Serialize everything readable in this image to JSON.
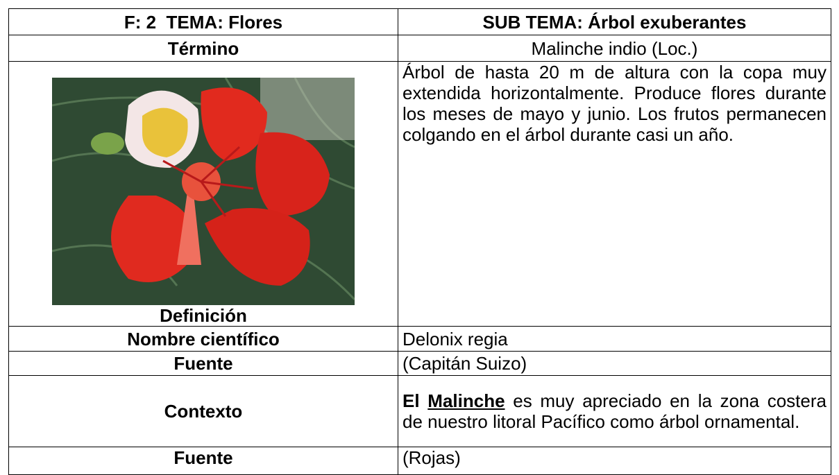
{
  "header": {
    "left": "F: 2  TEMA: Flores",
    "right": "SUB TEMA: Árbol exuberantes"
  },
  "term": {
    "label": "Término",
    "value": "Malinche indio (Loc.)"
  },
  "definition": {
    "label": "Definición",
    "text": "Árbol de hasta 20 m de altura con la copa muy extendida horizontalmente. Produce flores durante los meses de mayo y junio. Los frutos permanecen colgando en el árbol durante casi un año."
  },
  "scientific_name": {
    "label": "Nombre científico",
    "value": "Delonix regia"
  },
  "source_1": {
    "label": "Fuente",
    "value": "(Capitán Suizo)"
  },
  "context": {
    "label": "Contexto",
    "lead": "El",
    "term": "Malinche",
    "text": "es muy apreciado en la zona costera de nuestro litoral Pacífico como árbol ornamental."
  },
  "source_2": {
    "label": "Fuente",
    "value": "(Rojas)"
  }
}
